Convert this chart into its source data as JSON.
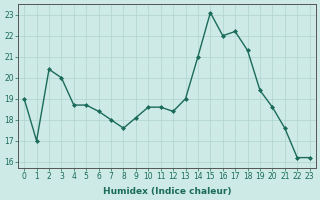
{
  "xlabel": "Humidex (Indice chaleur)",
  "ylabel": "",
  "x": [
    0,
    1,
    2,
    3,
    4,
    5,
    6,
    7,
    8,
    9,
    10,
    11,
    12,
    13,
    14,
    15,
    16,
    17,
    18,
    19,
    20,
    21,
    22,
    23
  ],
  "y": [
    19.0,
    17.0,
    20.4,
    20.0,
    18.7,
    18.7,
    18.4,
    18.0,
    17.6,
    18.1,
    18.6,
    18.6,
    18.4,
    19.0,
    21.0,
    23.1,
    22.0,
    22.2,
    21.3,
    19.4,
    18.6,
    17.6,
    16.2,
    16.2
  ],
  "line_color": "#1a6b5a",
  "marker": "D",
  "marker_size": 2,
  "bg_color": "#ceeae6",
  "grid_color": "#afd4cf",
  "spine_color": "#555555",
  "ylim": [
    15.7,
    23.5
  ],
  "yticks": [
    16,
    17,
    18,
    19,
    20,
    21,
    22,
    23
  ],
  "xlim": [
    -0.5,
    23.5
  ],
  "xticks": [
    0,
    1,
    2,
    3,
    4,
    5,
    6,
    7,
    8,
    9,
    10,
    11,
    12,
    13,
    14,
    15,
    16,
    17,
    18,
    19,
    20,
    21,
    22,
    23
  ],
  "tick_fontsize": 5.5,
  "xlabel_fontsize": 6.5,
  "line_width": 1.0
}
